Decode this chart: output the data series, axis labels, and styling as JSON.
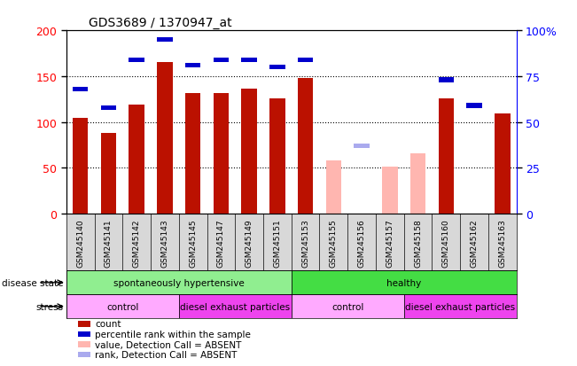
{
  "title": "GDS3689 / 1370947_at",
  "samples": [
    "GSM245140",
    "GSM245141",
    "GSM245142",
    "GSM245143",
    "GSM245145",
    "GSM245147",
    "GSM245149",
    "GSM245151",
    "GSM245153",
    "GSM245155",
    "GSM245156",
    "GSM245157",
    "GSM245158",
    "GSM245160",
    "GSM245162",
    "GSM245163"
  ],
  "count_values": [
    105,
    88,
    119,
    165,
    132,
    132,
    136,
    126,
    148,
    58,
    null,
    51,
    66,
    126,
    null,
    109
  ],
  "rank_values": [
    68,
    58,
    84,
    95,
    81,
    84,
    84,
    80,
    84,
    null,
    37,
    null,
    null,
    73,
    59,
    null
  ],
  "is_absent": [
    false,
    false,
    false,
    false,
    false,
    false,
    false,
    false,
    false,
    true,
    true,
    true,
    true,
    false,
    false,
    false
  ],
  "disease_state_groups": [
    {
      "label": "spontaneously hypertensive",
      "start": 0,
      "end": 8,
      "color": "#90ee90"
    },
    {
      "label": "healthy",
      "start": 8,
      "end": 16,
      "color": "#44dd44"
    }
  ],
  "stress_groups": [
    {
      "label": "control",
      "start": 0,
      "end": 4,
      "color": "#ffaaff"
    },
    {
      "label": "diesel exhaust particles",
      "start": 4,
      "end": 8,
      "color": "#ee44ee"
    },
    {
      "label": "control",
      "start": 8,
      "end": 12,
      "color": "#ffaaff"
    },
    {
      "label": "diesel exhaust particles",
      "start": 12,
      "end": 16,
      "color": "#ee44ee"
    }
  ],
  "ylim_left": [
    0,
    200
  ],
  "ylim_right": [
    0,
    100
  ],
  "bar_width": 0.55,
  "count_color": "#bb1100",
  "count_color_absent": "#ffb6b0",
  "rank_color": "#0000cc",
  "rank_color_absent": "#aaaaee",
  "background_color": "#ffffff",
  "plot_bg": "#ffffff",
  "grid_color": "#000000",
  "left_ytick_labels": [
    "0",
    "50",
    "100",
    "150",
    "200"
  ],
  "left_yticks": [
    0,
    50,
    100,
    150,
    200
  ],
  "right_ytick_labels": [
    "0",
    "25",
    "50",
    "75",
    "100%"
  ],
  "right_yticks": [
    0,
    25,
    50,
    75,
    100
  ]
}
